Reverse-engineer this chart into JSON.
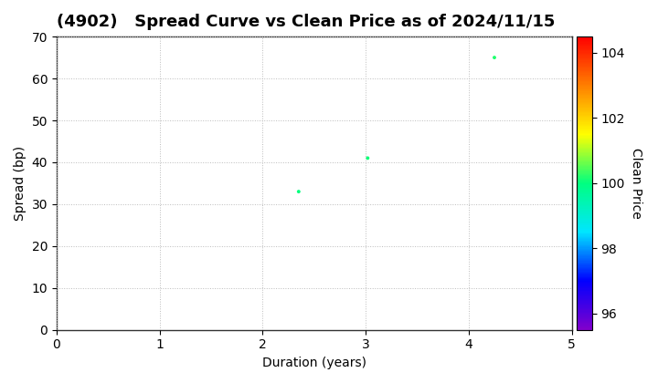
{
  "title": "(4902)   Spread Curve vs Clean Price as of 2024/11/15",
  "xlabel": "Duration (years)",
  "ylabel": "Spread (bp)",
  "colorbar_label": "Clean Price",
  "points": [
    {
      "duration": 2.35,
      "spread": 33,
      "clean_price": 100.0
    },
    {
      "duration": 3.02,
      "spread": 41,
      "clean_price": 100.1
    },
    {
      "duration": 4.25,
      "spread": 65,
      "clean_price": 100.2
    }
  ],
  "xlim": [
    0,
    5
  ],
  "ylim": [
    0,
    70
  ],
  "xticks": [
    0,
    1,
    2,
    3,
    4,
    5
  ],
  "yticks": [
    0,
    10,
    20,
    30,
    40,
    50,
    60,
    70
  ],
  "colorbar_min": 95.5,
  "colorbar_max": 104.5,
  "colorbar_ticks": [
    96,
    98,
    100,
    102,
    104
  ],
  "marker_size": 8,
  "background_color": "#ffffff",
  "grid_color": "#bbbbbb",
  "title_fontsize": 13,
  "axis_fontsize": 10,
  "tick_fontsize": 10
}
